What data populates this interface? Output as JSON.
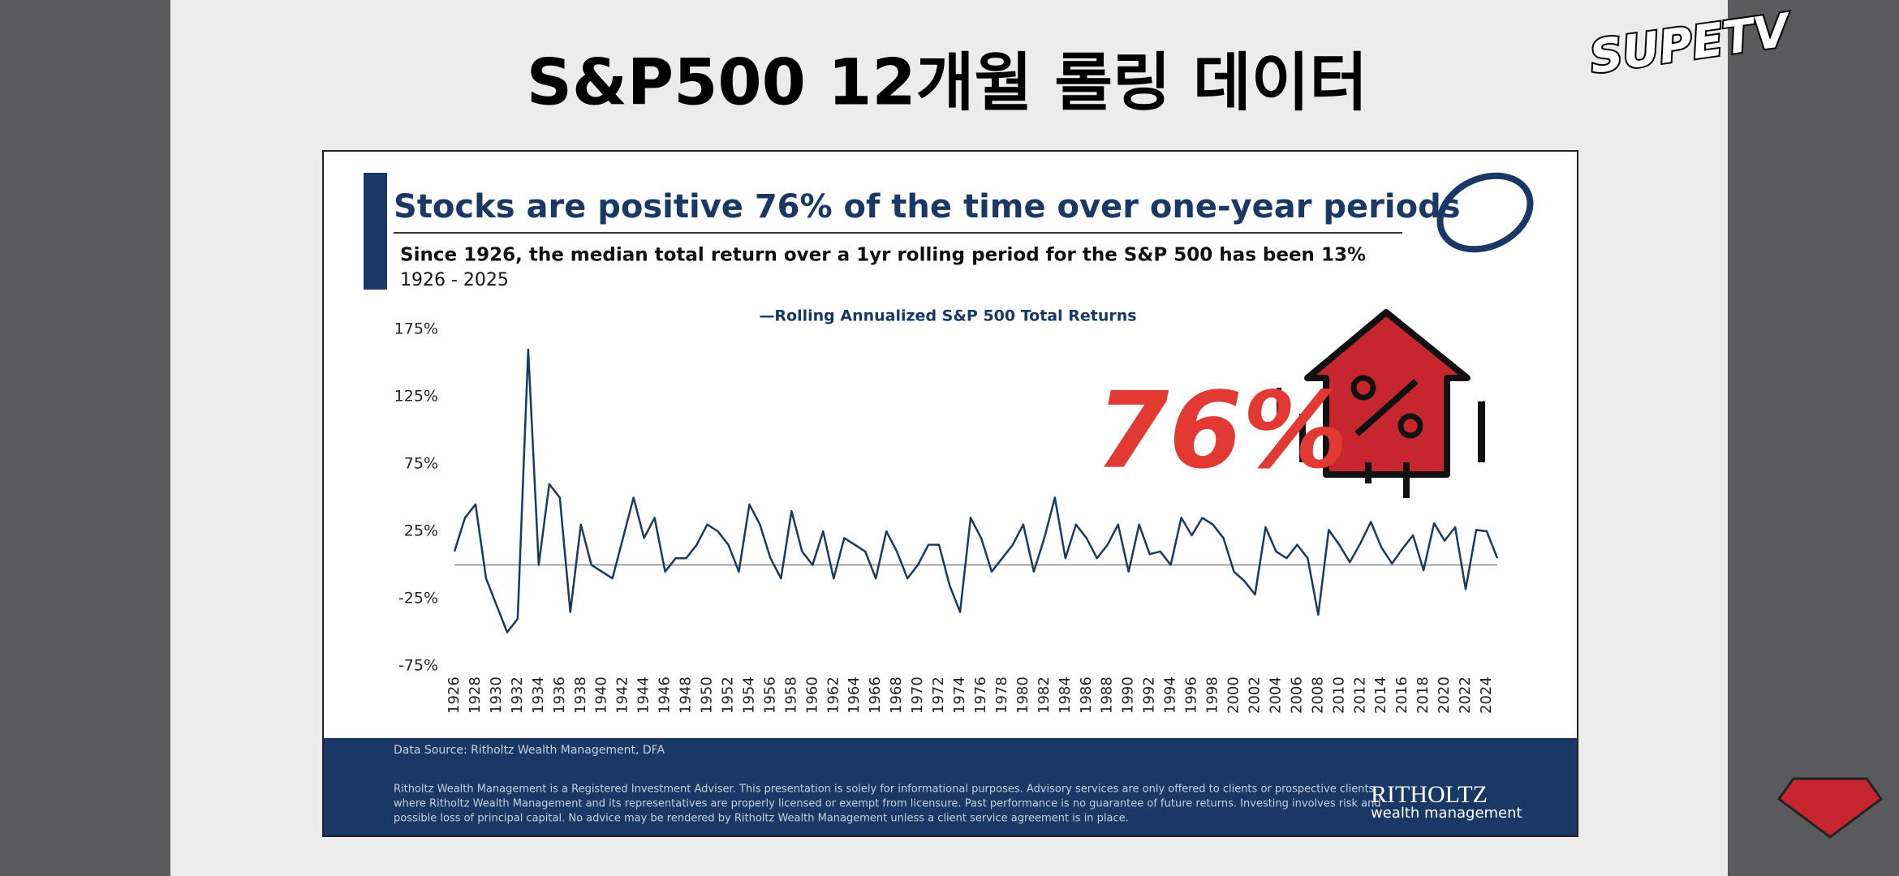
{
  "page_title": "S&P500 12개월 롤링 데이터",
  "logo": "SUPETV",
  "overlay_text": "76%",
  "chart_data": {
    "type": "line",
    "title": "Stocks are positive 76% of the time over one-year periods",
    "subtitle": "Since 1926, the median total return over a 1yr rolling period for the S&P 500 has been 13%",
    "period": "1926 - 2025",
    "x": [
      1926,
      1927,
      1928,
      1929,
      1930,
      1931,
      1932,
      1933,
      1934,
      1935,
      1936,
      1937,
      1938,
      1939,
      1940,
      1941,
      1942,
      1943,
      1944,
      1945,
      1946,
      1947,
      1948,
      1949,
      1950,
      1951,
      1952,
      1953,
      1954,
      1955,
      1956,
      1957,
      1958,
      1959,
      1960,
      1961,
      1962,
      1963,
      1964,
      1965,
      1966,
      1967,
      1968,
      1969,
      1970,
      1971,
      1972,
      1973,
      1974,
      1975,
      1976,
      1977,
      1978,
      1979,
      1980,
      1981,
      1982,
      1983,
      1984,
      1985,
      1986,
      1987,
      1988,
      1989,
      1990,
      1991,
      1992,
      1993,
      1994,
      1995,
      1996,
      1997,
      1998,
      1999,
      2000,
      2001,
      2002,
      2003,
      2004,
      2005,
      2006,
      2007,
      2008,
      2009,
      2010,
      2011,
      2012,
      2013,
      2014,
      2015,
      2016,
      2017,
      2018,
      2019,
      2020,
      2021,
      2022,
      2023,
      2024,
      2025
    ],
    "series": [
      {
        "name": "—Rolling Annualized S&P 500 Total Returns",
        "color": "#1b3a5e",
        "values": [
          10,
          35,
          45,
          -10,
          -30,
          -50,
          -40,
          160,
          0,
          60,
          50,
          -35,
          30,
          0,
          -5,
          -10,
          20,
          50,
          20,
          35,
          -5,
          5,
          5,
          15,
          30,
          25,
          15,
          -5,
          45,
          30,
          5,
          -10,
          40,
          10,
          0,
          25,
          -10,
          20,
          15,
          10,
          -10,
          25,
          10,
          -10,
          0,
          15,
          15,
          -15,
          -35,
          35,
          20,
          -5,
          5,
          15,
          30,
          -5,
          20,
          50,
          5,
          30,
          20,
          5,
          15,
          30,
          -5,
          30,
          8,
          10,
          0,
          35,
          22,
          35,
          30,
          20,
          -5,
          -12,
          -22,
          28,
          10,
          5,
          15,
          5,
          -37,
          26,
          15,
          2,
          16,
          32,
          13,
          1,
          12,
          22,
          -4,
          31,
          18,
          28,
          -18,
          26,
          25,
          5
        ]
      }
    ],
    "xlim": [
      1926,
      2025
    ],
    "xticks": [
      1926,
      1928,
      1930,
      1932,
      1934,
      1936,
      1938,
      1940,
      1942,
      1944,
      1946,
      1948,
      1950,
      1952,
      1954,
      1956,
      1958,
      1960,
      1962,
      1964,
      1966,
      1968,
      1970,
      1972,
      1974,
      1976,
      1978,
      1980,
      1982,
      1984,
      1986,
      1988,
      1990,
      1992,
      1994,
      1996,
      1998,
      2000,
      2002,
      2004,
      2006,
      2008,
      2010,
      2012,
      2014,
      2016,
      2018,
      2020,
      2022,
      2024
    ],
    "ylim": [
      -75,
      175
    ],
    "yticks": [
      {
        "value": -75,
        "label": "-75%"
      },
      {
        "value": -25,
        "label": "-25%"
      },
      {
        "value": 25,
        "label": "25%"
      },
      {
        "value": 75,
        "label": "75%"
      },
      {
        "value": 125,
        "label": "125%"
      },
      {
        "value": 175,
        "label": "175%"
      }
    ],
    "hline": 0,
    "source": "Data Source: Ritholtz Wealth Management, DFA",
    "disclaimer": [
      "Ritholtz Wealth Management is a Registered Investment Adviser. This presentation is solely for informational purposes. Advisory services are only offered to clients or prospective clients",
      "where Ritholtz Wealth Management and its representatives are properly licensed or exempt from licensure. Past performance is no guarantee of future returns. Investing involves risk and",
      "possible loss of principal capital. No advice may be rendered by Ritholtz Wealth Management unless a client service agreement is in place."
    ],
    "brand": "RITHOLTZ",
    "brand_sub": "wealth management"
  }
}
